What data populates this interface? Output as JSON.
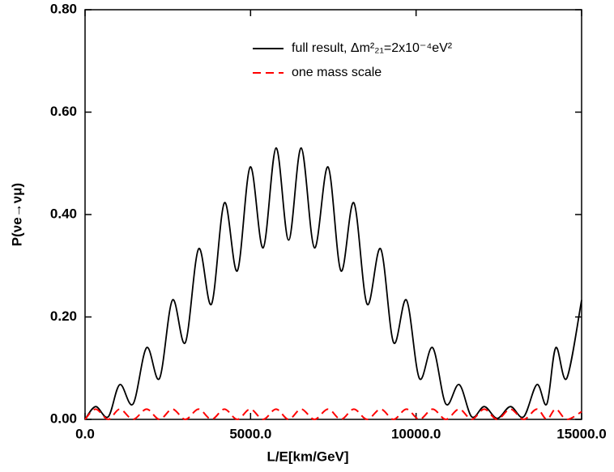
{
  "chart_data": {
    "type": "line",
    "x_label": "L/E[km/GeV]",
    "y_label": "P(νe→νμ)",
    "x": [
      0,
      320,
      700,
      1050,
      1450,
      1860,
      2250,
      2640,
      3030,
      3430,
      3820,
      4210,
      4600,
      4990,
      5380,
      5770,
      6150,
      6530,
      6930,
      7340,
      7730,
      8120,
      8520,
      8930,
      9320,
      9710,
      10100,
      10500,
      10900,
      11300,
      11680,
      12060,
      12450,
      12850,
      13250,
      13650,
      13950,
      14220,
      14550,
      15000
    ],
    "series": [
      {
        "name": "full result, Δm²₂₁=2x10⁻⁴eV²",
        "color": "#000000",
        "dash": "solid",
        "values": [
          0,
          0.025,
          0.005,
          0.068,
          0.03,
          0.14,
          0.08,
          0.233,
          0.15,
          0.333,
          0.225,
          0.423,
          0.29,
          0.493,
          0.335,
          0.53,
          0.35,
          0.53,
          0.335,
          0.493,
          0.29,
          0.423,
          0.225,
          0.333,
          0.15,
          0.233,
          0.08,
          0.14,
          0.03,
          0.068,
          0.005,
          0.025,
          0.002,
          0.025,
          0.005,
          0.068,
          0.03,
          0.14,
          0.08,
          0.233
        ]
      },
      {
        "name": "one mass scale",
        "color": "#ff0000",
        "dash": "dashed",
        "values": [
          0,
          0.02,
          0,
          0.02,
          0,
          0.02,
          0,
          0.02,
          0,
          0.02,
          0,
          0.02,
          0,
          0.02,
          0,
          0.02,
          0,
          0.02,
          0,
          0.02,
          0,
          0.02,
          0,
          0.02,
          0,
          0.02,
          0,
          0.02,
          0,
          0.02,
          0,
          0.02,
          0,
          0.02,
          0,
          0.02,
          0,
          0.02,
          0,
          0.015
        ]
      }
    ],
    "xlim": [
      0,
      15000
    ],
    "xticks": [
      {
        "value": 0,
        "label": "0.0"
      },
      {
        "value": 5000,
        "label": "5000.0"
      },
      {
        "value": 10000,
        "label": "10000.0"
      },
      {
        "value": 15000,
        "label": "15000.0"
      }
    ],
    "ylim": [
      0,
      0.8
    ],
    "yticks": [
      {
        "value": 0,
        "label": "0.00"
      },
      {
        "value": 0.2,
        "label": "0.20"
      },
      {
        "value": 0.4,
        "label": "0.40"
      },
      {
        "value": 0.6,
        "label": "0.60"
      },
      {
        "value": 0.8,
        "label": "0.80"
      }
    ],
    "legend": "upper right"
  }
}
